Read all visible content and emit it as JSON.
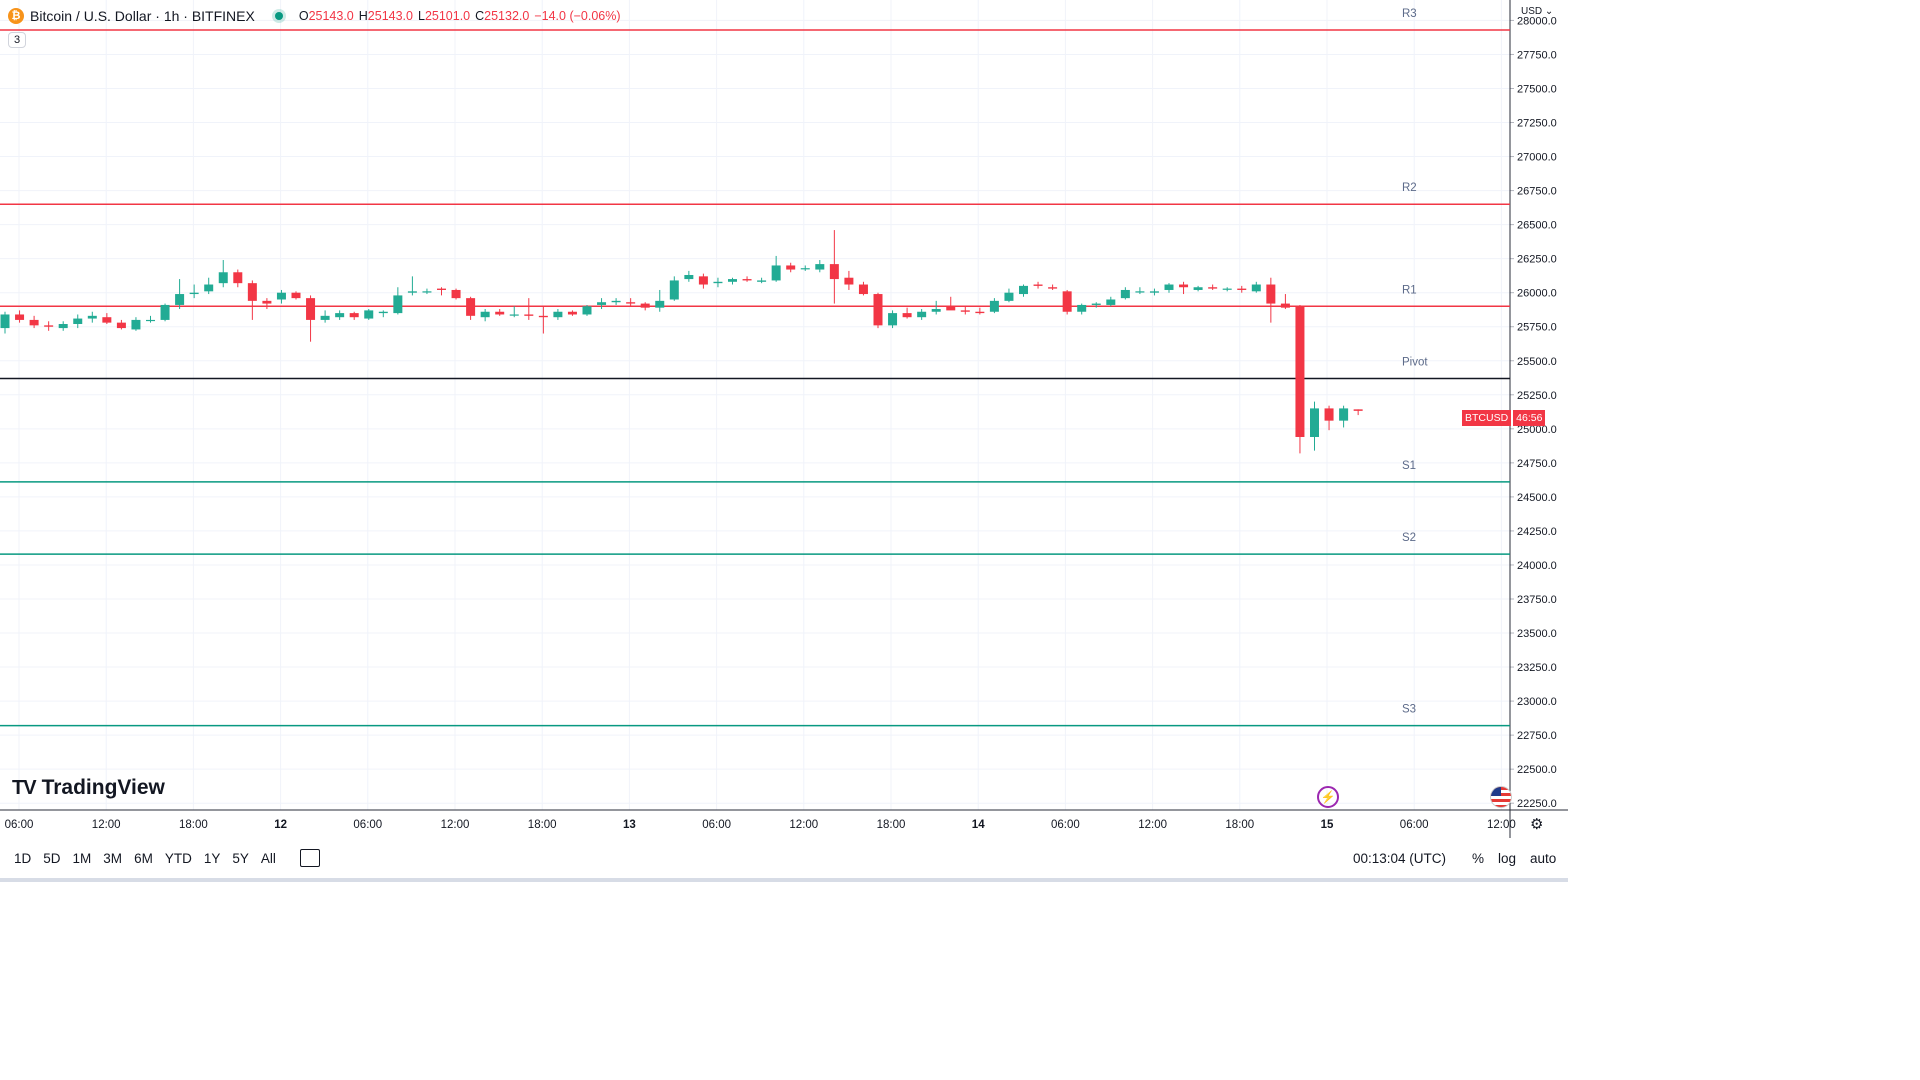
{
  "header": {
    "coin_icon": "₿",
    "symbol_title": "Bitcoin / U.S. Dollar · 1h · BITFINEX",
    "status_icon": "market-open-dot",
    "ohlc": {
      "o_label": "O",
      "o": "25143.0",
      "h_label": "H",
      "h": "25143.0",
      "l_label": "L",
      "l": "25101.0",
      "c_label": "C",
      "c": "25132.0",
      "change": "−14.0 (−0.06%)"
    },
    "indicator_count": "3"
  },
  "branding": {
    "logo": "TV",
    "name": "TradingView"
  },
  "price_scale": {
    "currency": "USD",
    "tag_symbol": "BTCUSD",
    "tag_countdown": "46:56"
  },
  "bottom_bar": {
    "ranges": [
      "1D",
      "5D",
      "1M",
      "3M",
      "6M",
      "YTD",
      "1Y",
      "5Y",
      "All"
    ],
    "clock": "00:13:04 (UTC)",
    "percent": "%",
    "log": "log",
    "auto": "auto"
  },
  "colors": {
    "up": "#22ab94",
    "down": "#f23645",
    "resistance": "#f23645",
    "support": "#089981",
    "pivot": "#131722",
    "grid": "#f0f3fa",
    "text": "#131722"
  },
  "chart_data": {
    "type": "candlestick",
    "ylim": [
      22200,
      28150
    ],
    "y_ticks": [
      "28000.0",
      "27750.0",
      "27500.0",
      "27250.0",
      "27000.0",
      "26750.0",
      "26500.0",
      "26250.0",
      "26000.0",
      "25750.0",
      "25500.0",
      "25250.0",
      "25000.0",
      "24750.0",
      "24500.0",
      "24250.0",
      "24000.0",
      "23750.0",
      "23500.0",
      "23250.0",
      "23000.0",
      "22750.0",
      "22500.0",
      "22250.0"
    ],
    "x_ticks": [
      "06:00",
      "12:00",
      "18:00",
      "12",
      "06:00",
      "12:00",
      "18:00",
      "13",
      "06:00",
      "12:00",
      "18:00",
      "14",
      "06:00",
      "12:00",
      "18:00",
      "15",
      "06:00",
      "12:00"
    ],
    "levels": [
      {
        "label": "R3",
        "value": 27930,
        "kind": "resistance"
      },
      {
        "label": "R2",
        "value": 26650,
        "kind": "resistance"
      },
      {
        "label": "R1",
        "value": 25900,
        "kind": "resistance"
      },
      {
        "label": "Pivot",
        "value": 25370,
        "kind": "pivot"
      },
      {
        "label": "S1",
        "value": 24610,
        "kind": "support"
      },
      {
        "label": "S2",
        "value": 24080,
        "kind": "support"
      },
      {
        "label": "S3",
        "value": 22820,
        "kind": "support"
      }
    ],
    "candles": [
      {
        "o": 25740,
        "h": 25860,
        "l": 25700,
        "c": 25840
      },
      {
        "o": 25840,
        "h": 25870,
        "l": 25780,
        "c": 25800
      },
      {
        "o": 25800,
        "h": 25830,
        "l": 25740,
        "c": 25760
      },
      {
        "o": 25760,
        "h": 25790,
        "l": 25720,
        "c": 25750
      },
      {
        "o": 25740,
        "h": 25790,
        "l": 25720,
        "c": 25770
      },
      {
        "o": 25770,
        "h": 25840,
        "l": 25740,
        "c": 25810
      },
      {
        "o": 25810,
        "h": 25860,
        "l": 25780,
        "c": 25830
      },
      {
        "o": 25820,
        "h": 25850,
        "l": 25770,
        "c": 25780
      },
      {
        "o": 25780,
        "h": 25800,
        "l": 25730,
        "c": 25740
      },
      {
        "o": 25730,
        "h": 25820,
        "l": 25720,
        "c": 25800
      },
      {
        "o": 25800,
        "h": 25830,
        "l": 25780,
        "c": 25800
      },
      {
        "o": 25800,
        "h": 25920,
        "l": 25790,
        "c": 25910
      },
      {
        "o": 25910,
        "h": 26100,
        "l": 25880,
        "c": 25990
      },
      {
        "o": 25990,
        "h": 26060,
        "l": 25960,
        "c": 26000
      },
      {
        "o": 26010,
        "h": 26110,
        "l": 25990,
        "c": 26060
      },
      {
        "o": 26070,
        "h": 26240,
        "l": 26040,
        "c": 26150
      },
      {
        "o": 26150,
        "h": 26170,
        "l": 26040,
        "c": 26070
      },
      {
        "o": 26070,
        "h": 26090,
        "l": 25800,
        "c": 25940
      },
      {
        "o": 25940,
        "h": 25960,
        "l": 25880,
        "c": 25920
      },
      {
        "o": 25950,
        "h": 26020,
        "l": 25920,
        "c": 26000
      },
      {
        "o": 26000,
        "h": 26010,
        "l": 25950,
        "c": 25960
      },
      {
        "o": 25960,
        "h": 25980,
        "l": 25640,
        "c": 25800
      },
      {
        "o": 25800,
        "h": 25870,
        "l": 25780,
        "c": 25830
      },
      {
        "o": 25820,
        "h": 25870,
        "l": 25800,
        "c": 25850
      },
      {
        "o": 25850,
        "h": 25860,
        "l": 25800,
        "c": 25820
      },
      {
        "o": 25810,
        "h": 25880,
        "l": 25800,
        "c": 25870
      },
      {
        "o": 25850,
        "h": 25870,
        "l": 25820,
        "c": 25860
      },
      {
        "o": 25850,
        "h": 26040,
        "l": 25840,
        "c": 25980
      },
      {
        "o": 26000,
        "h": 26120,
        "l": 25980,
        "c": 26010
      },
      {
        "o": 26010,
        "h": 26030,
        "l": 25990,
        "c": 26010
      },
      {
        "o": 26030,
        "h": 26040,
        "l": 25980,
        "c": 26020
      },
      {
        "o": 26020,
        "h": 26030,
        "l": 25950,
        "c": 25960
      },
      {
        "o": 25960,
        "h": 25970,
        "l": 25800,
        "c": 25830
      },
      {
        "o": 25820,
        "h": 25880,
        "l": 25790,
        "c": 25860
      },
      {
        "o": 25860,
        "h": 25880,
        "l": 25830,
        "c": 25840
      },
      {
        "o": 25840,
        "h": 25900,
        "l": 25820,
        "c": 25840
      },
      {
        "o": 25840,
        "h": 25960,
        "l": 25800,
        "c": 25830
      },
      {
        "o": 25830,
        "h": 25900,
        "l": 25700,
        "c": 25820
      },
      {
        "o": 25820,
        "h": 25880,
        "l": 25800,
        "c": 25860
      },
      {
        "o": 25860,
        "h": 25870,
        "l": 25830,
        "c": 25840
      },
      {
        "o": 25840,
        "h": 25910,
        "l": 25830,
        "c": 25900
      },
      {
        "o": 25910,
        "h": 25960,
        "l": 25880,
        "c": 25930
      },
      {
        "o": 25930,
        "h": 25960,
        "l": 25910,
        "c": 25940
      },
      {
        "o": 25930,
        "h": 25960,
        "l": 25900,
        "c": 25920
      },
      {
        "o": 25920,
        "h": 25930,
        "l": 25870,
        "c": 25890
      },
      {
        "o": 25890,
        "h": 26020,
        "l": 25860,
        "c": 25940
      },
      {
        "o": 25950,
        "h": 26120,
        "l": 25940,
        "c": 26090
      },
      {
        "o": 26100,
        "h": 26160,
        "l": 26080,
        "c": 26130
      },
      {
        "o": 26120,
        "h": 26140,
        "l": 26030,
        "c": 26060
      },
      {
        "o": 26070,
        "h": 26110,
        "l": 26040,
        "c": 26080
      },
      {
        "o": 26080,
        "h": 26110,
        "l": 26060,
        "c": 26100
      },
      {
        "o": 26100,
        "h": 26120,
        "l": 26080,
        "c": 26090
      },
      {
        "o": 26080,
        "h": 26110,
        "l": 26070,
        "c": 26090
      },
      {
        "o": 26090,
        "h": 26270,
        "l": 26080,
        "c": 26200
      },
      {
        "o": 26200,
        "h": 26220,
        "l": 26150,
        "c": 26170
      },
      {
        "o": 26180,
        "h": 26200,
        "l": 26160,
        "c": 26180
      },
      {
        "o": 26170,
        "h": 26240,
        "l": 26150,
        "c": 26210
      },
      {
        "o": 26210,
        "h": 26460,
        "l": 25920,
        "c": 26100
      },
      {
        "o": 26110,
        "h": 26160,
        "l": 26020,
        "c": 26060
      },
      {
        "o": 26060,
        "h": 26080,
        "l": 25980,
        "c": 25990
      },
      {
        "o": 25990,
        "h": 26000,
        "l": 25740,
        "c": 25760
      },
      {
        "o": 25760,
        "h": 25870,
        "l": 25740,
        "c": 25850
      },
      {
        "o": 25850,
        "h": 25890,
        "l": 25810,
        "c": 25820
      },
      {
        "o": 25820,
        "h": 25880,
        "l": 25800,
        "c": 25860
      },
      {
        "o": 25860,
        "h": 25940,
        "l": 25840,
        "c": 25880
      },
      {
        "o": 25900,
        "h": 25970,
        "l": 25880,
        "c": 25870
      },
      {
        "o": 25870,
        "h": 25900,
        "l": 25840,
        "c": 25860
      },
      {
        "o": 25860,
        "h": 25890,
        "l": 25840,
        "c": 25850
      },
      {
        "o": 25860,
        "h": 25960,
        "l": 25850,
        "c": 25940
      },
      {
        "o": 25940,
        "h": 26030,
        "l": 25930,
        "c": 26000
      },
      {
        "o": 25990,
        "h": 26060,
        "l": 25970,
        "c": 26050
      },
      {
        "o": 26060,
        "h": 26080,
        "l": 26030,
        "c": 26050
      },
      {
        "o": 26040,
        "h": 26060,
        "l": 26020,
        "c": 26030
      },
      {
        "o": 26010,
        "h": 26020,
        "l": 25840,
        "c": 25860
      },
      {
        "o": 25860,
        "h": 25920,
        "l": 25840,
        "c": 25910
      },
      {
        "o": 25910,
        "h": 25930,
        "l": 25890,
        "c": 25920
      },
      {
        "o": 25910,
        "h": 25970,
        "l": 25900,
        "c": 25950
      },
      {
        "o": 25960,
        "h": 26040,
        "l": 25950,
        "c": 26020
      },
      {
        "o": 26010,
        "h": 26040,
        "l": 25990,
        "c": 26010
      },
      {
        "o": 26000,
        "h": 26030,
        "l": 25980,
        "c": 26010
      },
      {
        "o": 26020,
        "h": 26070,
        "l": 26000,
        "c": 26060
      },
      {
        "o": 26060,
        "h": 26080,
        "l": 25990,
        "c": 26040
      },
      {
        "o": 26020,
        "h": 26050,
        "l": 26010,
        "c": 26040
      },
      {
        "o": 26040,
        "h": 26060,
        "l": 26020,
        "c": 26030
      },
      {
        "o": 26030,
        "h": 26040,
        "l": 26010,
        "c": 26030
      },
      {
        "o": 26030,
        "h": 26050,
        "l": 26000,
        "c": 26020
      },
      {
        "o": 26010,
        "h": 26080,
        "l": 26000,
        "c": 26060
      },
      {
        "o": 26060,
        "h": 26110,
        "l": 25780,
        "c": 25920
      },
      {
        "o": 25920,
        "h": 25990,
        "l": 25880,
        "c": 25890
      },
      {
        "o": 25900,
        "h": 25910,
        "l": 24820,
        "c": 24940
      },
      {
        "o": 24940,
        "h": 25200,
        "l": 24840,
        "c": 25150
      },
      {
        "o": 25150,
        "h": 25170,
        "l": 24990,
        "c": 25060
      },
      {
        "o": 25060,
        "h": 25170,
        "l": 25010,
        "c": 25150
      },
      {
        "o": 25143,
        "h": 25143,
        "l": 25101,
        "c": 25132
      }
    ]
  }
}
